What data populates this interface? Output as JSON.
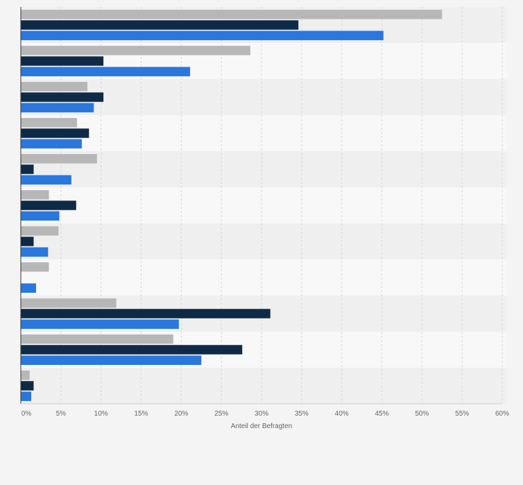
{
  "chart_data": {
    "type": "bar",
    "orientation": "horizontal",
    "title": "",
    "xlabel": "Anteil der Befragten",
    "ylabel": "",
    "xlim": [
      0,
      60
    ],
    "x_ticks": [
      0,
      5,
      10,
      15,
      20,
      25,
      30,
      35,
      40,
      45,
      50,
      55,
      60
    ],
    "x_tick_labels": [
      "0%",
      "5%",
      "10%",
      "15%",
      "20%",
      "25%",
      "30%",
      "35%",
      "40%",
      "45%",
      "50%",
      "55%",
      "60%"
    ],
    "grid": true,
    "legend": "none",
    "categories": [
      "",
      "",
      "",
      "",
      "",
      "",
      "",
      "",
      "",
      "",
      ""
    ],
    "series": [
      {
        "name": "",
        "color": "#b7b7b7",
        "values": [
          52.5,
          28.6,
          8.3,
          7.0,
          9.5,
          3.5,
          4.7,
          3.5,
          11.9,
          19.0,
          1.1
        ]
      },
      {
        "name": "",
        "color": "#0f2a47",
        "values": [
          34.6,
          10.3,
          10.3,
          8.5,
          1.6,
          6.9,
          1.6,
          0.0,
          31.1,
          27.6,
          1.6
        ]
      },
      {
        "name": "",
        "color": "#2a77de",
        "values": [
          45.2,
          21.1,
          9.1,
          7.6,
          6.3,
          4.8,
          3.4,
          1.9,
          19.7,
          22.5,
          1.3
        ]
      }
    ]
  }
}
